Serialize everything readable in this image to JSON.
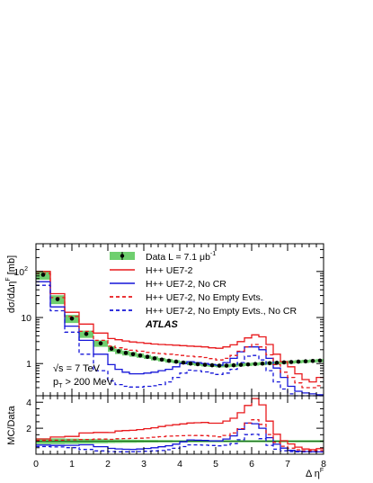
{
  "chart_data": {
    "type": "line",
    "x_axis": {
      "label": "Δ η",
      "label_superscript": "F",
      "range": [
        0,
        8
      ],
      "ticks": [
        "0",
        "1",
        "2",
        "3",
        "4",
        "5",
        "6",
        "7",
        "8"
      ]
    },
    "bin_edges": [
      0,
      0.4,
      0.8,
      1.2,
      1.6,
      2.0,
      2.2,
      2.4,
      2.6,
      2.8,
      3.0,
      3.2,
      3.4,
      3.6,
      3.8,
      4.0,
      4.2,
      4.4,
      4.6,
      4.8,
      5.0,
      5.2,
      5.4,
      5.6,
      5.8,
      6.0,
      6.2,
      6.4,
      6.6,
      6.8,
      7.0,
      7.2,
      7.4,
      7.6,
      7.8,
      8.0
    ],
    "top_panel": {
      "y_axis": {
        "label": "dσ/dΔη",
        "label_superscript": "F",
        "label_unit": " [mb]",
        "scale": "log",
        "range": [
          0.2,
          400
        ],
        "tick_labels": [
          {
            "value": 1,
            "text": "1"
          },
          {
            "value": 10,
            "text": "10"
          },
          {
            "value": 100,
            "text": "10"
          }
        ],
        "tick_label_superscripts": [
          "",
          "",
          "2"
        ]
      },
      "legend_position": "top-right",
      "legend": [
        {
          "text": "Data L = 7.1 μb",
          "superscript": "-1",
          "color": "#000000",
          "style": "marker-band"
        },
        {
          "text": "H++ UE7-2",
          "color": "#e8191c",
          "style": "solid"
        },
        {
          "text": "H++ UE7-2, No CR",
          "color": "#1515d8",
          "style": "solid"
        },
        {
          "text": "H++ UE7-2, No Empty Evts.",
          "color": "#e8191c",
          "style": "dashed"
        },
        {
          "text": "H++ UE7-2, No Empty Evts., No CR",
          "color": "#1515d8",
          "style": "dashed"
        }
      ],
      "annotations": {
        "experiment": "ATLAS",
        "energy_prefix": "√s = 7 TeV",
        "cut_label": "p",
        "cut_subscript": "T",
        "cut_value": " > 200 MeV"
      },
      "series": [
        {
          "name": "H++ UE7-2",
          "color": "#e8191c",
          "dash": "solid",
          "values": [
            100,
            33,
            13,
            7.2,
            4.6,
            3.5,
            3.3,
            3.1,
            2.95,
            2.85,
            2.75,
            2.65,
            2.6,
            2.55,
            2.5,
            2.45,
            2.4,
            2.35,
            2.3,
            2.2,
            2.15,
            2.3,
            2.55,
            3.0,
            3.6,
            4.2,
            3.8,
            2.6,
            1.6,
            1.1,
            0.85,
            0.6,
            0.45,
            0.4,
            0.5
          ]
        },
        {
          "name": "H++ UE7-2, No CR",
          "color": "#1515d8",
          "dash": "solid",
          "values": [
            60,
            17,
            6.5,
            3.2,
            1.6,
            0.95,
            0.75,
            0.65,
            0.6,
            0.6,
            0.62,
            0.65,
            0.7,
            0.75,
            0.85,
            1.0,
            1.1,
            1.05,
            1.0,
            0.95,
            0.92,
            1.05,
            1.3,
            1.8,
            2.3,
            2.3,
            2.0,
            1.3,
            0.8,
            0.5,
            0.32,
            0.25,
            0.23,
            0.22,
            0.21
          ]
        },
        {
          "name": "H++ UE7-2, No Empty Evts.",
          "color": "#e8191c",
          "dash": "dashed",
          "values": [
            90,
            27,
            10.5,
            5.0,
            3.2,
            2.4,
            2.2,
            2.05,
            1.95,
            1.85,
            1.75,
            1.7,
            1.65,
            1.6,
            1.55,
            1.5,
            1.45,
            1.4,
            1.35,
            1.28,
            1.2,
            1.3,
            1.5,
            1.85,
            2.3,
            2.6,
            2.3,
            1.55,
            0.95,
            0.65,
            0.5,
            0.38,
            0.3,
            0.3,
            0.33
          ]
        },
        {
          "name": "H++ UE7-2, No Empty Evts., No CR",
          "color": "#1515d8",
          "dash": "dashed",
          "values": [
            50,
            14,
            4.8,
            1.6,
            0.7,
            0.42,
            0.35,
            0.32,
            0.31,
            0.31,
            0.32,
            0.33,
            0.35,
            0.4,
            0.5,
            0.62,
            0.72,
            0.7,
            0.66,
            0.62,
            0.58,
            0.62,
            0.75,
            1.05,
            1.45,
            1.5,
            1.2,
            0.7,
            0.4,
            0.28,
            0.22,
            0.2,
            0.2,
            0.2,
            0.2
          ]
        }
      ],
      "data_points": {
        "name": "Data",
        "x": [
          0.2,
          0.6,
          1.0,
          1.4,
          1.8,
          2.1,
          2.3,
          2.5,
          2.7,
          2.9,
          3.1,
          3.3,
          3.5,
          3.7,
          3.9,
          4.1,
          4.3,
          4.5,
          4.7,
          4.9,
          5.1,
          5.3,
          5.5,
          5.7,
          5.9,
          6.1,
          6.3,
          6.5,
          6.7,
          6.9,
          7.1,
          7.3,
          7.5,
          7.7,
          7.9
        ],
        "y": [
          85,
          25,
          9.5,
          4.4,
          2.75,
          2.1,
          1.85,
          1.7,
          1.6,
          1.5,
          1.4,
          1.3,
          1.22,
          1.15,
          1.1,
          1.05,
          1.0,
          0.97,
          0.94,
          0.92,
          0.9,
          0.9,
          0.92,
          0.94,
          0.96,
          0.98,
          1.0,
          1.02,
          1.04,
          1.06,
          1.08,
          1.1,
          1.12,
          1.14,
          1.16
        ],
        "band_rel_err": [
          0.22,
          0.22,
          0.2,
          0.18,
          0.16,
          0.14,
          0.13,
          0.12,
          0.12,
          0.11,
          0.1,
          0.1,
          0.09,
          0.09,
          0.08,
          0.08,
          0.08,
          0.08,
          0.08,
          0.08,
          0.08,
          0.08,
          0.08,
          0.08,
          0.08,
          0.08,
          0.08,
          0.08,
          0.08,
          0.08,
          0.08,
          0.08,
          0.08,
          0.08,
          0.08
        ]
      }
    },
    "bottom_panel": {
      "y_axis": {
        "label": "MC/Data",
        "scale": "linear",
        "range": [
          0,
          4.5
        ],
        "ticks": [
          "2",
          "4"
        ]
      },
      "reference_line": 1
    }
  }
}
